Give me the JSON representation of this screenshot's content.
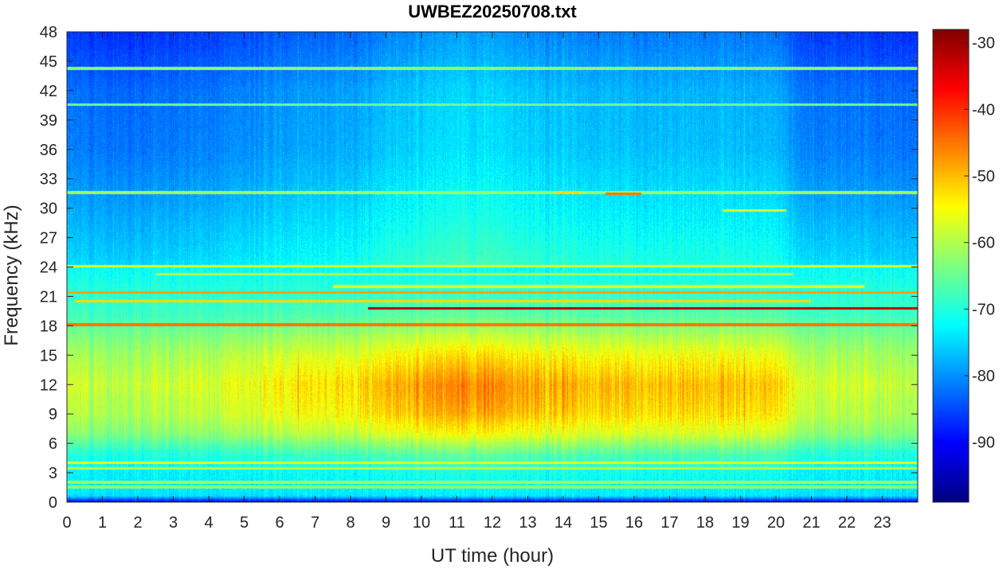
{
  "chart_data": {
    "type": "heatmap",
    "title": "UWBEZ20250708.txt",
    "xlabel": "UT time (hour)",
    "ylabel": "Frequency (kHz)",
    "xlim": [
      0,
      24
    ],
    "ylim": [
      0,
      48
    ],
    "x_ticks": [
      0,
      1,
      2,
      3,
      4,
      5,
      6,
      7,
      8,
      9,
      10,
      11,
      12,
      13,
      14,
      15,
      16,
      17,
      18,
      19,
      20,
      21,
      22,
      23
    ],
    "y_ticks": [
      0,
      3,
      6,
      9,
      12,
      15,
      18,
      21,
      24,
      27,
      30,
      33,
      36,
      39,
      42,
      45,
      48
    ],
    "colormap": "jet",
    "colorbar": {
      "clim": [
        -99,
        -28
      ],
      "ticks": [
        -90,
        -80,
        -70,
        -60,
        -50,
        -40,
        -30
      ]
    },
    "background_level_by_frequency": [
      {
        "f": 0,
        "dB": -90
      },
      {
        "f": 0.6,
        "dB": -74
      },
      {
        "f": 3,
        "dB": -72
      },
      {
        "f": 5,
        "dB": -68
      },
      {
        "f": 7,
        "dB": -60
      },
      {
        "f": 9,
        "dB": -56
      },
      {
        "f": 12,
        "dB": -54
      },
      {
        "f": 15,
        "dB": -58
      },
      {
        "f": 17,
        "dB": -62
      },
      {
        "f": 19,
        "dB": -67
      },
      {
        "f": 22,
        "dB": -70
      },
      {
        "f": 25,
        "dB": -73
      },
      {
        "f": 30,
        "dB": -76
      },
      {
        "f": 36,
        "dB": -79
      },
      {
        "f": 42,
        "dB": -80
      },
      {
        "f": 48,
        "dB": -84
      }
    ],
    "activity_by_hour": [
      {
        "t": 0,
        "dB": -4
      },
      {
        "t": 2,
        "dB": -5
      },
      {
        "t": 4,
        "dB": -3
      },
      {
        "t": 6,
        "dB": 0
      },
      {
        "t": 8,
        "dB": 2
      },
      {
        "t": 9,
        "dB": 5
      },
      {
        "t": 11,
        "dB": 8
      },
      {
        "t": 12,
        "dB": 8
      },
      {
        "t": 14,
        "dB": 5
      },
      {
        "t": 16,
        "dB": 4
      },
      {
        "t": 18,
        "dB": 4
      },
      {
        "t": 20,
        "dB": 3
      },
      {
        "t": 20.8,
        "dB": -3
      },
      {
        "t": 24,
        "dB": -5
      }
    ],
    "transmitter_lines": [
      {
        "f": 21.4,
        "t0": 0,
        "t1": 24,
        "dB": -48
      },
      {
        "f": 19.8,
        "t0": 8.5,
        "t1": 24,
        "dB": -32
      },
      {
        "f": 18.1,
        "t0": 0,
        "t1": 24,
        "dB": -45
      },
      {
        "f": 24.1,
        "t0": 0,
        "t1": 24,
        "dB": -57
      },
      {
        "f": 22.0,
        "t0": 7.5,
        "t1": 22.5,
        "dB": -57
      },
      {
        "f": 23.3,
        "t0": 2.5,
        "t1": 20.5,
        "dB": -60
      },
      {
        "f": 44.3,
        "t0": 0,
        "t1": 24,
        "dB": -63
      },
      {
        "f": 40.6,
        "t0": 0,
        "t1": 24,
        "dB": -65
      },
      {
        "f": 31.6,
        "t0": 0,
        "t1": 24,
        "dB": -62
      },
      {
        "f": 20.5,
        "t0": 0.2,
        "t1": 21,
        "dB": -52
      },
      {
        "f": 4.0,
        "t0": 0,
        "t1": 24,
        "dB": -57
      },
      {
        "f": 3.4,
        "t0": 0,
        "t1": 24,
        "dB": -60
      },
      {
        "f": 2.0,
        "t0": 0,
        "t1": 24,
        "dB": -62
      },
      {
        "f": 1.5,
        "t0": 0,
        "t1": 24,
        "dB": -63
      },
      {
        "f": 0.4,
        "t0": 0,
        "t1": 24,
        "dB": -88
      },
      {
        "f": 31.5,
        "t0": 15.2,
        "t1": 16.2,
        "dB": -45
      },
      {
        "f": 31.6,
        "t0": 13.8,
        "t1": 14.5,
        "dB": -52
      },
      {
        "f": 29.8,
        "t0": 18.5,
        "t1": 20.3,
        "dB": -58
      }
    ]
  }
}
